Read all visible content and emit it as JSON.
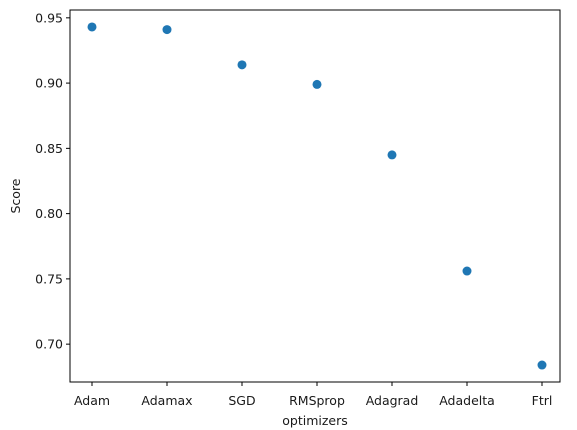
{
  "chart_data": {
    "type": "scatter",
    "title": "",
    "xlabel": "optimizers",
    "ylabel": "Score",
    "categories": [
      "Adam",
      "Adamax",
      "SGD",
      "RMSprop",
      "Adagrad",
      "Adadelta",
      "Ftrl"
    ],
    "values": [
      0.943,
      0.941,
      0.914,
      0.899,
      0.845,
      0.756,
      0.684
    ],
    "yticks": [
      0.7,
      0.75,
      0.8,
      0.85,
      0.9,
      0.95
    ],
    "ytick_labels": [
      "0.70",
      "0.75",
      "0.80",
      "0.85",
      "0.90",
      "0.95"
    ],
    "ylim": [
      0.671,
      0.956
    ],
    "grid": false,
    "point_color": "#1f77b4"
  }
}
